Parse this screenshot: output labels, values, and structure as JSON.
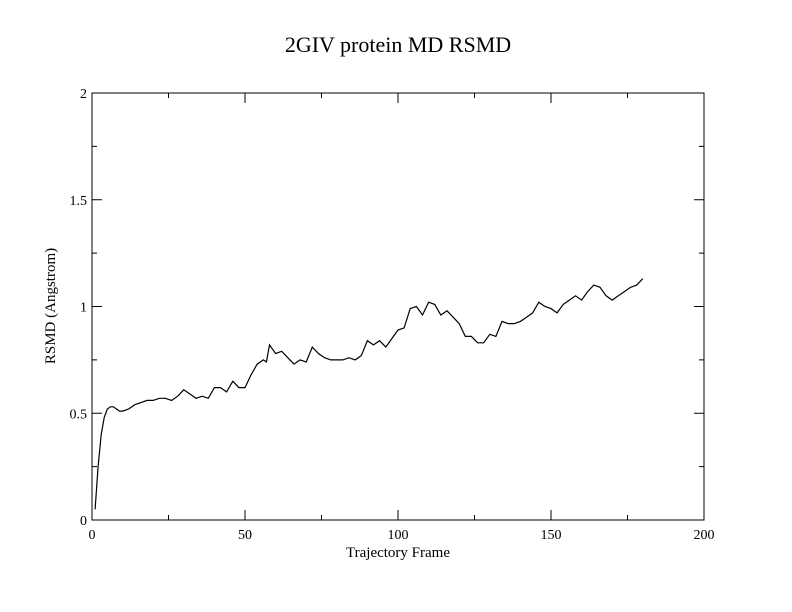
{
  "chart_data": {
    "type": "line",
    "title": "2GIV protein MD RSMD",
    "xlabel": "Trajectory Frame",
    "ylabel": "RSMD (Angstrom)",
    "xlim": [
      0,
      200
    ],
    "ylim": [
      0,
      2
    ],
    "xticks": [
      0,
      50,
      100,
      150,
      200
    ],
    "xtick_labels": [
      "0",
      "50",
      "100",
      "150",
      "200"
    ],
    "yticks": [
      0,
      0.5,
      1,
      1.5,
      2
    ],
    "ytick_labels": [
      "0",
      "0.5",
      "1",
      "1.5",
      "2"
    ],
    "grid": false,
    "legend": "none",
    "series": [
      {
        "color": "#000000",
        "x": [
          1,
          2,
          3,
          4,
          5,
          6,
          7,
          8,
          9,
          10,
          12,
          14,
          16,
          18,
          20,
          22,
          24,
          26,
          28,
          30,
          32,
          34,
          36,
          38,
          40,
          42,
          44,
          46,
          48,
          50,
          52,
          54,
          56,
          57,
          58,
          60,
          62,
          64,
          66,
          68,
          70,
          72,
          74,
          76,
          78,
          80,
          82,
          84,
          86,
          88,
          90,
          92,
          94,
          96,
          98,
          100,
          102,
          104,
          106,
          108,
          110,
          112,
          114,
          116,
          118,
          120,
          122,
          124,
          126,
          128,
          130,
          132,
          134,
          136,
          138,
          140,
          142,
          144,
          146,
          148,
          150,
          152,
          154,
          156,
          158,
          160,
          162,
          164,
          166,
          168,
          170,
          172,
          174,
          176,
          178,
          180
        ],
        "y": [
          0.05,
          0.25,
          0.4,
          0.48,
          0.52,
          0.53,
          0.53,
          0.52,
          0.51,
          0.51,
          0.52,
          0.54,
          0.55,
          0.56,
          0.56,
          0.57,
          0.57,
          0.56,
          0.58,
          0.61,
          0.59,
          0.57,
          0.58,
          0.57,
          0.62,
          0.62,
          0.6,
          0.65,
          0.62,
          0.62,
          0.68,
          0.73,
          0.75,
          0.74,
          0.82,
          0.78,
          0.79,
          0.76,
          0.73,
          0.75,
          0.74,
          0.81,
          0.78,
          0.76,
          0.75,
          0.75,
          0.75,
          0.76,
          0.75,
          0.77,
          0.84,
          0.82,
          0.84,
          0.81,
          0.85,
          0.89,
          0.9,
          0.99,
          1.0,
          0.96,
          1.02,
          1.01,
          0.96,
          0.98,
          0.95,
          0.92,
          0.86,
          0.86,
          0.83,
          0.83,
          0.87,
          0.86,
          0.93,
          0.92,
          0.92,
          0.93,
          0.95,
          0.97,
          1.02,
          1.0,
          0.99,
          0.97,
          1.01,
          1.03,
          1.05,
          1.03,
          1.07,
          1.1,
          1.09,
          1.05,
          1.03,
          1.05,
          1.07,
          1.09,
          1.1,
          1.13
        ]
      }
    ]
  }
}
